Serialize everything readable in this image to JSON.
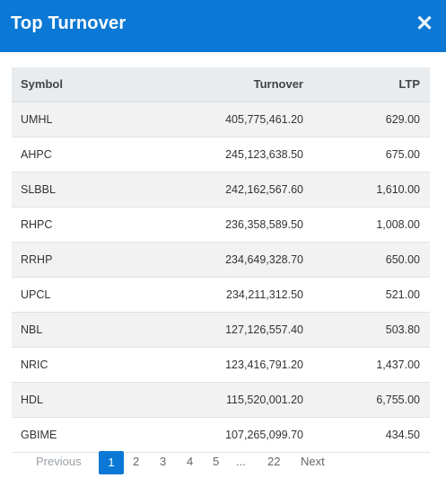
{
  "modal": {
    "title": "Top Turnover"
  },
  "table": {
    "headers": {
      "symbol": "Symbol",
      "turnover": "Turnover",
      "ltp": "LTP"
    },
    "rows": [
      {
        "symbol": "UMHL",
        "turnover": "405,775,461.20",
        "ltp": "629.00"
      },
      {
        "symbol": "AHPC",
        "turnover": "245,123,638.50",
        "ltp": "675.00"
      },
      {
        "symbol": "SLBBL",
        "turnover": "242,162,567.60",
        "ltp": "1,610.00"
      },
      {
        "symbol": "RHPC",
        "turnover": "236,358,589.50",
        "ltp": "1,008.00"
      },
      {
        "symbol": "RRHP",
        "turnover": "234,649,328.70",
        "ltp": "650.00"
      },
      {
        "symbol": "UPCL",
        "turnover": "234,211,312.50",
        "ltp": "521.00"
      },
      {
        "symbol": "NBL",
        "turnover": "127,126,557.40",
        "ltp": "503.80"
      },
      {
        "symbol": "NRIC",
        "turnover": "123,416,791.20",
        "ltp": "1,437.00"
      },
      {
        "symbol": "HDL",
        "turnover": "115,520,001.20",
        "ltp": "6,755.00"
      },
      {
        "symbol": "GBIME",
        "turnover": "107,265,099.70",
        "ltp": "434.50"
      }
    ]
  },
  "pagination": {
    "previous": "Previous",
    "pages": [
      "1",
      "2",
      "3",
      "4",
      "5"
    ],
    "ellipsis": "...",
    "last": "22",
    "next": "Next",
    "active_color": "#0a78d4"
  },
  "colors": {
    "header_bg": "#0a78d4",
    "row_alt": "#f2f2f2",
    "thead_bg": "#e9ecef"
  },
  "icons": {
    "close": "close-icon"
  }
}
